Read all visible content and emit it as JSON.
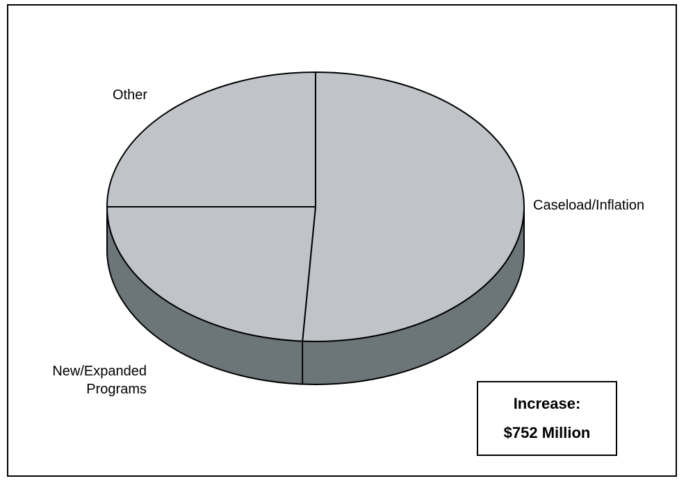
{
  "chart_data": {
    "type": "pie",
    "style": "3d",
    "total_label": "Increase:",
    "total_value": "$752 Million",
    "slices": [
      {
        "name": "Caseload/Inflation",
        "value": 51
      },
      {
        "name": "New/Expanded Programs",
        "label_lines": [
          "New/Expanded",
          "Programs"
        ],
        "value": 24
      },
      {
        "name": "Other",
        "value": 25
      }
    ],
    "colors": {
      "top": "#c0c4c9",
      "side": "#6c7577",
      "edge": "#000000"
    }
  }
}
